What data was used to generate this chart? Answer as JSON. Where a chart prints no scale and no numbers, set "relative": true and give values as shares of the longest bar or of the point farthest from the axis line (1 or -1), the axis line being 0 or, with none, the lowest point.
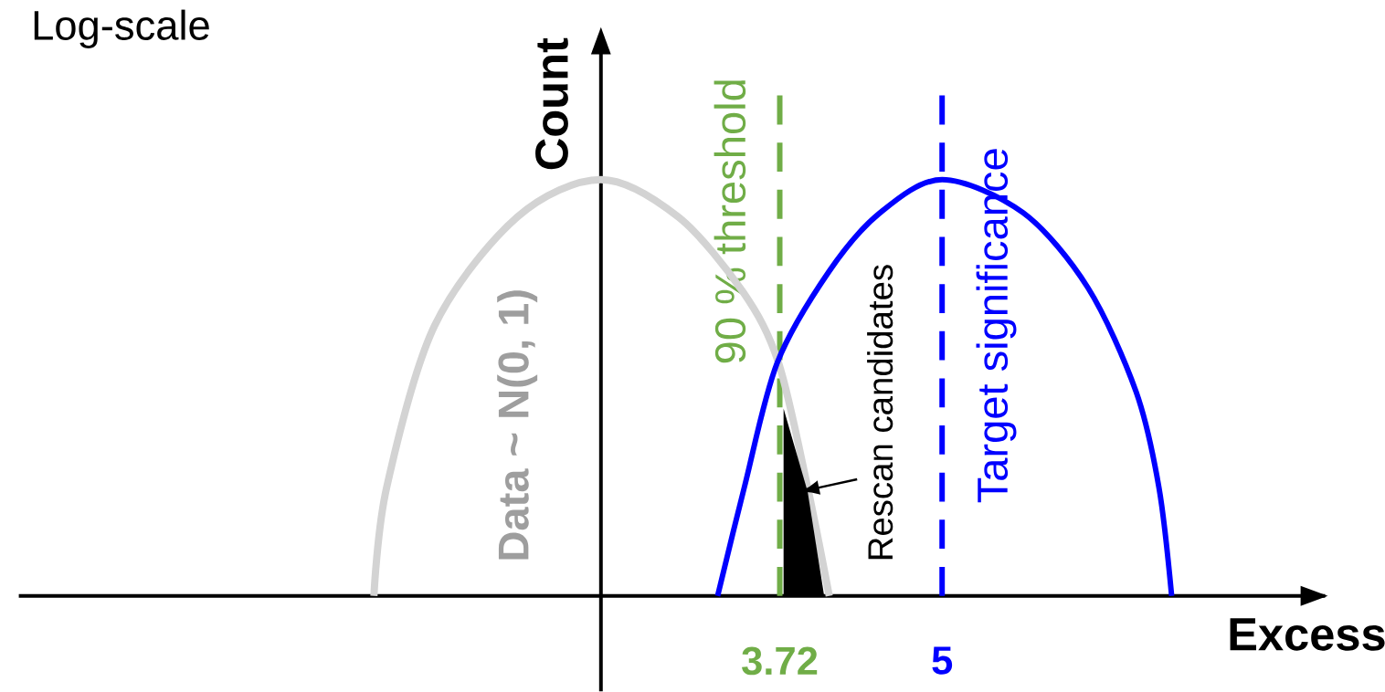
{
  "chart_data": {
    "type": "line",
    "relative": true,
    "annotations": [
      "Log-scale"
    ],
    "xlabel": "Excess",
    "ylabel": "Count",
    "xlim": [
      -2.28,
      8.02
    ],
    "xticks": [
      3.72,
      5
    ],
    "series": [
      {
        "name": "Data ~ N(0, 1)",
        "color": "#d3d3d3",
        "x": [
          0.52,
          0.62,
          1.0,
          1.65,
          2.31,
          2.92,
          3.43,
          3.71,
          3.94,
          4.11
        ],
        "values": [
          0,
          0.26,
          0.65,
          0.91,
          1,
          0.91,
          0.73,
          0.56,
          0.26,
          0
        ]
      },
      {
        "color": "#0000ff",
        "x": [
          3.23,
          3.44,
          3.7,
          4.11,
          4.51,
          5.0,
          5.64,
          6.15,
          6.53,
          6.71,
          6.81
        ],
        "values": [
          0,
          0.26,
          0.56,
          0.78,
          0.92,
          1,
          0.92,
          0.74,
          0.49,
          0.26,
          0
        ]
      },
      {
        "name": "Rescan candidates",
        "type": "area",
        "color": "#000000",
        "x": [
          3.75,
          3.75,
          3.94,
          4.07
        ],
        "values": [
          0,
          0.45,
          0.25,
          0
        ]
      }
    ],
    "ref_lines": [
      {
        "axis": "x",
        "value": 2.31,
        "color": "#000000",
        "line_style": "solid"
      },
      {
        "axis": "x",
        "value": 3.72,
        "label": "90 % threshold",
        "color": "#70ad47",
        "line_style": "dashed"
      },
      {
        "axis": "x",
        "value": 5,
        "label": "Target significance",
        "color": "#0000ff",
        "line_style": "dashed"
      }
    ],
    "line_style": "solid"
  }
}
